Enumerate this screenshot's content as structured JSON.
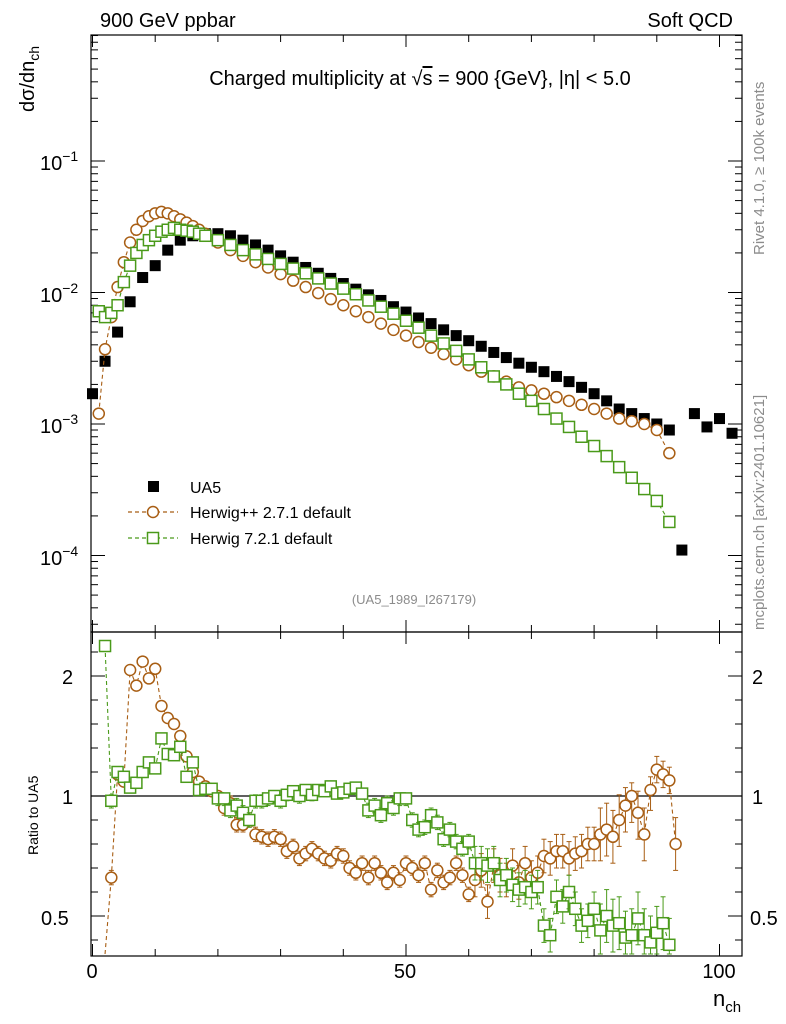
{
  "header": {
    "left": "900 GeV ppbar",
    "right": "Soft QCD"
  },
  "side_labels": {
    "rivet": "Rivet 4.1.0, ≥ 100k events",
    "mcplots": "mcplots.cern.ch [arXiv:2401.10621]"
  },
  "chart_data": [
    {
      "type": "scatter",
      "panel": "main",
      "title": "Charged multiplicity at √s = 900 {GeV}, |η| < 5.0",
      "title_parts": {
        "pre": "Charged multiplicity at ",
        "sqrt": "√",
        "s": "s",
        "post": " = 900 {GeV}, |η| < 5.0"
      },
      "ylabel": "dσ/dn_ch",
      "ylabel_parts": {
        "main": "dσ/dn",
        "sub": "ch"
      },
      "yscale": "log",
      "ylim": [
        2.5e-05,
        0.6
      ],
      "xlim": [
        0,
        104
      ],
      "ytick_labels": [
        {
          "value": 0.1,
          "base": "10",
          "exp": "−1"
        },
        {
          "value": 0.01,
          "base": "10",
          "exp": "−2"
        },
        {
          "value": 0.001,
          "base": "10",
          "exp": "−3"
        },
        {
          "value": 0.0001,
          "base": "10",
          "exp": "−4"
        }
      ],
      "analysis_id": "(UA5_1989_I267179)",
      "legend_position": "lower-left",
      "legend": [
        "UA5",
        "Herwig++ 2.7.1 default",
        "Herwig 7.2.1 default"
      ],
      "series": [
        {
          "name": "UA5",
          "marker": "filled-square",
          "color": "#000000",
          "x": [
            0,
            2,
            4,
            6,
            8,
            10,
            12,
            14,
            16,
            18,
            20,
            22,
            24,
            26,
            28,
            30,
            32,
            34,
            36,
            38,
            40,
            42,
            44,
            46,
            48,
            50,
            52,
            54,
            56,
            58,
            60,
            62,
            64,
            66,
            68,
            70,
            72,
            74,
            76,
            78,
            80,
            82,
            84,
            86,
            88,
            90,
            92,
            94,
            96,
            98,
            100,
            102
          ],
          "y": [
            0.0017,
            0.003,
            0.005,
            0.0085,
            0.013,
            0.016,
            0.021,
            0.025,
            0.027,
            0.028,
            0.028,
            0.027,
            0.025,
            0.023,
            0.021,
            0.019,
            0.017,
            0.0155,
            0.014,
            0.0128,
            0.0117,
            0.0106,
            0.0096,
            0.0087,
            0.0078,
            0.0071,
            0.0064,
            0.0058,
            0.0052,
            0.0047,
            0.0043,
            0.0039,
            0.0035,
            0.0032,
            0.0029,
            0.0027,
            0.0025,
            0.0023,
            0.0021,
            0.0019,
            0.0017,
            0.0015,
            0.0013,
            0.0012,
            0.0011,
            0.001,
            0.0009,
            0.00011,
            0.0012,
            0.00095,
            0.0011,
            0.00085
          ]
        },
        {
          "name": "Herwig++ 2.7.1 default",
          "marker": "open-circle",
          "line": "dashed",
          "color": "#a85e14",
          "x": [
            1,
            2,
            3,
            4,
            5,
            6,
            7,
            8,
            9,
            10,
            11,
            12,
            13,
            14,
            15,
            16,
            17,
            18,
            20,
            22,
            24,
            26,
            28,
            30,
            32,
            34,
            36,
            38,
            40,
            42,
            44,
            46,
            48,
            50,
            52,
            54,
            56,
            58,
            60,
            62,
            64,
            66,
            68,
            70,
            72,
            74,
            76,
            78,
            80,
            82,
            84,
            86,
            88,
            90,
            92
          ],
          "y": [
            0.0012,
            0.0037,
            0.0065,
            0.011,
            0.017,
            0.024,
            0.03,
            0.035,
            0.038,
            0.04,
            0.041,
            0.04,
            0.038,
            0.036,
            0.034,
            0.032,
            0.03,
            0.028,
            0.024,
            0.021,
            0.019,
            0.017,
            0.0155,
            0.0138,
            0.0123,
            0.011,
            0.0099,
            0.0089,
            0.008,
            0.0072,
            0.0065,
            0.0058,
            0.0052,
            0.0047,
            0.0042,
            0.0038,
            0.0034,
            0.0031,
            0.0028,
            0.0025,
            0.0023,
            0.0021,
            0.0019,
            0.0018,
            0.0017,
            0.0016,
            0.0015,
            0.0014,
            0.0013,
            0.0012,
            0.0011,
            0.00105,
            0.001,
            0.0009,
            0.0006
          ]
        },
        {
          "name": "Herwig 7.2.1 default",
          "marker": "open-square",
          "line": "dashed",
          "color": "#4a9a1a",
          "x": [
            1,
            2,
            3,
            4,
            5,
            6,
            7,
            8,
            9,
            10,
            11,
            12,
            13,
            14,
            15,
            16,
            17,
            18,
            20,
            22,
            24,
            26,
            28,
            30,
            32,
            34,
            36,
            38,
            40,
            42,
            44,
            46,
            48,
            50,
            52,
            54,
            56,
            58,
            60,
            62,
            64,
            66,
            68,
            70,
            72,
            74,
            76,
            78,
            80,
            82,
            84,
            86,
            88,
            90,
            92
          ],
          "y": [
            0.0072,
            0.0065,
            0.007,
            0.008,
            0.012,
            0.016,
            0.02,
            0.023,
            0.025,
            0.027,
            0.029,
            0.03,
            0.031,
            0.03,
            0.0295,
            0.029,
            0.028,
            0.027,
            0.025,
            0.023,
            0.021,
            0.0195,
            0.018,
            0.0165,
            0.0152,
            0.014,
            0.0128,
            0.0117,
            0.0107,
            0.0097,
            0.0087,
            0.0078,
            0.0069,
            0.0061,
            0.0054,
            0.0047,
            0.0041,
            0.0036,
            0.0031,
            0.0027,
            0.0023,
            0.002,
            0.0017,
            0.0015,
            0.0013,
            0.0011,
            0.00095,
            0.0008,
            0.00068,
            0.00057,
            0.00047,
            0.00039,
            0.00032,
            0.00026,
            0.00018
          ]
        }
      ]
    },
    {
      "type": "scatter",
      "panel": "ratio",
      "ylabel": "Ratio to UA5",
      "xlabel": "n_ch",
      "xlabel_parts": {
        "main": "n",
        "sub": "ch"
      },
      "xlim": [
        0,
        104
      ],
      "ylim": [
        0.35,
        2.3
      ],
      "xtick_labels": [
        "0",
        "50",
        "100"
      ],
      "ytick_labels": [
        "0.5",
        "1",
        "2"
      ],
      "reference_line": 1,
      "series": [
        {
          "name": "Herwig++ 2.7.1 default",
          "marker": "open-circle",
          "color": "#a85e14",
          "x": [
            2,
            3,
            4,
            5,
            6,
            7,
            8,
            9,
            10,
            11,
            12,
            13,
            14,
            15,
            16,
            17,
            18,
            19,
            20,
            21,
            22,
            23,
            24,
            25,
            26,
            27,
            28,
            29,
            30,
            31,
            32,
            33,
            34,
            35,
            36,
            37,
            38,
            39,
            40,
            41,
            42,
            43,
            44,
            45,
            46,
            47,
            48,
            49,
            50,
            51,
            52,
            53,
            54,
            55,
            56,
            57,
            58,
            59,
            60,
            61,
            62,
            63,
            64,
            65,
            66,
            67,
            68,
            69,
            70,
            71,
            72,
            73,
            74,
            75,
            76,
            77,
            78,
            79,
            80,
            81,
            82,
            83,
            84,
            85,
            86,
            87,
            88,
            89,
            90,
            91,
            92,
            93
          ],
          "y": [
            0.3,
            0.66,
            1.18,
            1.12,
            2.05,
            1.92,
            2.12,
            1.98,
            2.06,
            1.75,
            1.65,
            1.6,
            1.5,
            1.33,
            1.2,
            1.12,
            1.08,
            1.04,
            1.0,
            0.95,
            0.97,
            0.88,
            0.88,
            0.9,
            0.84,
            0.83,
            0.82,
            0.83,
            0.82,
            0.77,
            0.79,
            0.74,
            0.76,
            0.78,
            0.76,
            0.74,
            0.73,
            0.76,
            0.75,
            0.7,
            0.68,
            0.72,
            0.66,
            0.72,
            0.68,
            0.64,
            0.68,
            0.65,
            0.72,
            0.7,
            0.67,
            0.72,
            0.61,
            0.69,
            0.64,
            0.66,
            0.72,
            0.67,
            0.59,
            0.65,
            0.69,
            0.56,
            0.71,
            0.67,
            0.65,
            0.71,
            0.64,
            0.72,
            0.66,
            0.68,
            0.75,
            0.74,
            0.77,
            0.77,
            0.74,
            0.76,
            0.77,
            0.8,
            0.8,
            0.84,
            0.86,
            0.83,
            0.9,
            0.96,
            1.0,
            0.93,
            0.84,
            1.05,
            1.22,
            1.18,
            1.13,
            0.8
          ]
        },
        {
          "name": "Herwig 7.2.1 default",
          "marker": "open-square",
          "color": "#4a9a1a",
          "x": [
            2,
            3,
            4,
            5,
            6,
            7,
            8,
            9,
            10,
            11,
            12,
            13,
            14,
            15,
            16,
            17,
            18,
            19,
            20,
            21,
            22,
            23,
            24,
            25,
            26,
            27,
            28,
            29,
            30,
            31,
            32,
            33,
            34,
            35,
            36,
            37,
            38,
            39,
            40,
            41,
            42,
            43,
            44,
            45,
            46,
            47,
            48,
            49,
            50,
            51,
            52,
            53,
            54,
            55,
            56,
            57,
            58,
            59,
            60,
            61,
            62,
            63,
            64,
            65,
            66,
            67,
            68,
            69,
            70,
            71,
            72,
            73,
            74,
            75,
            76,
            77,
            78,
            79,
            80,
            81,
            82,
            83,
            84,
            85,
            86,
            87,
            88,
            89,
            90,
            91,
            92
          ],
          "y": [
            2.25,
            0.98,
            1.2,
            1.16,
            1.07,
            1.11,
            1.2,
            1.28,
            1.23,
            1.48,
            1.35,
            1.34,
            1.41,
            1.16,
            1.28,
            1.05,
            1.06,
            1.06,
            0.99,
            0.99,
            0.94,
            0.96,
            0.93,
            0.9,
            0.98,
            0.98,
            0.99,
            1.0,
            0.98,
            1.01,
            1.04,
            1.0,
            1.05,
            1.01,
            1.05,
            1.04,
            1.08,
            1.02,
            1.03,
            1.06,
            1.07,
            1.02,
            0.94,
            0.96,
            0.92,
            0.97,
            0.95,
            0.99,
            0.99,
            0.9,
            0.86,
            0.87,
            0.92,
            0.89,
            0.82,
            0.86,
            0.81,
            0.78,
            0.81,
            0.72,
            0.72,
            0.71,
            0.72,
            0.65,
            0.67,
            0.63,
            0.61,
            0.62,
            0.6,
            0.62,
            0.46,
            0.42,
            0.58,
            0.54,
            0.6,
            0.53,
            0.46,
            0.48,
            0.53,
            0.44,
            0.5,
            0.46,
            0.47,
            0.41,
            0.42,
            0.49,
            0.42,
            0.39,
            0.43,
            0.47,
            0.38
          ]
        }
      ]
    }
  ]
}
